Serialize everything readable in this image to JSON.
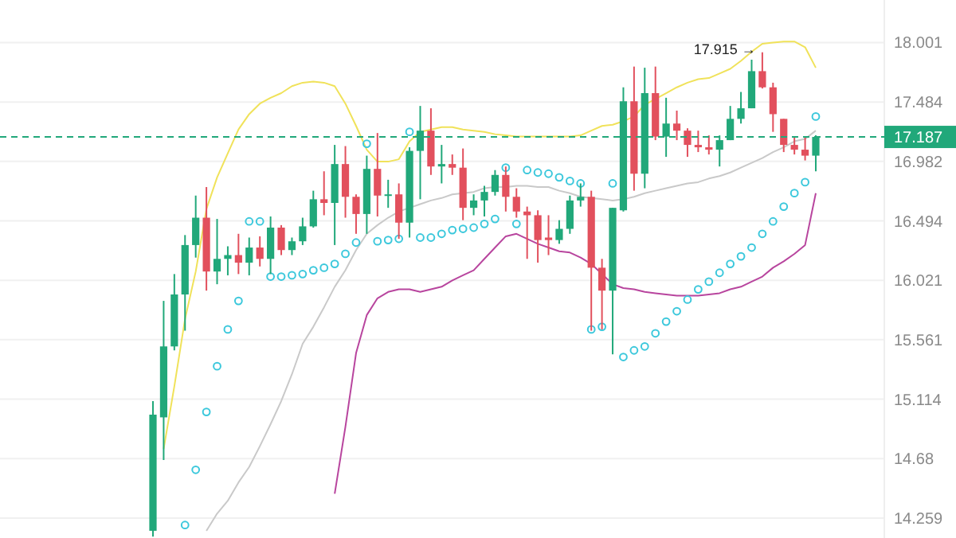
{
  "chart_data": {
    "type": "candlestick",
    "log": true,
    "grid": "y",
    "tick_labels": "y",
    "categories": [
      null,
      null,
      null,
      null,
      null,
      null,
      null,
      null,
      null,
      null,
      null,
      null,
      null,
      null,
      null,
      null,
      null,
      null,
      null,
      null,
      null,
      null,
      null,
      null,
      null,
      null,
      null,
      null,
      null,
      null,
      null,
      null,
      null,
      null,
      null,
      null,
      null,
      null,
      null,
      null,
      null,
      null,
      null,
      null,
      null,
      null,
      null,
      null,
      null,
      null,
      null,
      null,
      null,
      null,
      null,
      null,
      null,
      null,
      null,
      null,
      null,
      null,
      null
    ],
    "ylim": [
      14.12,
      18.38
    ],
    "yticks": [
      14.259,
      14.68,
      15.114,
      15.561,
      16.021,
      16.494,
      16.982,
      17.484,
      18.001
    ],
    "ohlc": [
      [
        14.17,
        15.1,
        14.13,
        15.0
      ],
      [
        14.98,
        15.86,
        14.67,
        15.51
      ],
      [
        15.51,
        16.07,
        15.48,
        15.91
      ],
      [
        15.91,
        16.38,
        15.63,
        16.3
      ],
      [
        16.3,
        16.7,
        16.2,
        16.52
      ],
      [
        16.52,
        16.77,
        15.94,
        16.09
      ],
      [
        16.09,
        16.51,
        15.99,
        16.19
      ],
      [
        16.19,
        16.29,
        16.06,
        16.22
      ],
      [
        16.22,
        16.39,
        16.07,
        16.16
      ],
      [
        16.16,
        16.36,
        16.06,
        16.28
      ],
      [
        16.28,
        16.37,
        16.13,
        16.19
      ],
      [
        16.19,
        16.53,
        16.07,
        16.44
      ],
      [
        16.44,
        16.46,
        16.22,
        16.26
      ],
      [
        16.26,
        16.36,
        16.22,
        16.33
      ],
      [
        16.33,
        16.52,
        16.3,
        16.45
      ],
      [
        16.45,
        16.74,
        16.44,
        16.67
      ],
      [
        16.67,
        16.9,
        16.54,
        16.64
      ],
      [
        16.64,
        17.12,
        16.3,
        16.96
      ],
      [
        16.96,
        17.11,
        16.52,
        16.69
      ],
      [
        16.69,
        16.71,
        16.39,
        16.55
      ],
      [
        16.55,
        17.03,
        16.39,
        16.92
      ],
      [
        16.92,
        17.22,
        16.53,
        16.7
      ],
      [
        16.7,
        16.83,
        16.6,
        16.71
      ],
      [
        16.71,
        16.8,
        16.35,
        16.48
      ],
      [
        16.48,
        17.1,
        16.36,
        17.07
      ],
      [
        17.07,
        17.45,
        16.67,
        17.24
      ],
      [
        17.24,
        17.43,
        16.87,
        16.94
      ],
      [
        16.94,
        17.12,
        16.8,
        16.96
      ],
      [
        16.96,
        17.04,
        16.87,
        16.93
      ],
      [
        16.93,
        17.09,
        16.5,
        16.6
      ],
      [
        16.6,
        16.71,
        16.54,
        16.66
      ],
      [
        16.66,
        16.78,
        16.53,
        16.73
      ],
      [
        16.73,
        16.91,
        16.7,
        16.87
      ],
      [
        16.87,
        16.94,
        16.57,
        16.69
      ],
      [
        16.69,
        16.76,
        16.52,
        16.57
      ],
      [
        16.57,
        16.61,
        16.19,
        16.54
      ],
      [
        16.54,
        16.58,
        16.16,
        16.34
      ],
      [
        16.36,
        16.54,
        16.22,
        16.34
      ],
      [
        16.34,
        16.5,
        16.31,
        16.43
      ],
      [
        16.43,
        16.7,
        16.39,
        16.66
      ],
      [
        16.66,
        16.8,
        16.61,
        16.69
      ],
      [
        16.69,
        16.74,
        15.63,
        16.12
      ],
      [
        16.12,
        16.19,
        15.64,
        15.94
      ],
      [
        15.94,
        16.6,
        15.45,
        16.6
      ],
      [
        16.58,
        17.61,
        16.57,
        17.49
      ],
      [
        17.49,
        17.79,
        16.74,
        16.88
      ],
      [
        16.88,
        17.78,
        16.76,
        17.56
      ],
      [
        17.56,
        17.79,
        17.16,
        17.19
      ],
      [
        17.19,
        17.52,
        17.02,
        17.3
      ],
      [
        17.3,
        17.41,
        17.16,
        17.24
      ],
      [
        17.24,
        17.26,
        17.02,
        17.12
      ],
      [
        17.12,
        17.24,
        17.06,
        17.1
      ],
      [
        17.1,
        17.2,
        17.04,
        17.08
      ],
      [
        17.08,
        17.2,
        16.94,
        17.16
      ],
      [
        17.16,
        17.45,
        17.16,
        17.34
      ],
      [
        17.34,
        17.57,
        17.3,
        17.43
      ],
      [
        17.43,
        17.85,
        17.43,
        17.75
      ],
      [
        17.75,
        17.915,
        17.6,
        17.61
      ],
      [
        17.61,
        17.65,
        17.23,
        17.38
      ],
      [
        17.34,
        17.34,
        17.06,
        17.12
      ],
      [
        17.12,
        17.19,
        17.04,
        17.08
      ],
      [
        17.08,
        17.19,
        16.99,
        17.03
      ],
      [
        17.03,
        17.2,
        16.9,
        17.187
      ]
    ],
    "colors": [
      "#21a87a",
      "#21a87a",
      "#21a87a",
      "#21a87a",
      "#21a87a",
      "#e2505d",
      "#21a87a",
      "#21a87a",
      "#e2505d",
      "#21a87a",
      "#e2505d",
      "#21a87a",
      "#e2505d",
      "#21a87a",
      "#21a87a",
      "#21a87a",
      "#e2505d",
      "#21a87a",
      "#e2505d",
      "#e2505d",
      "#21a87a",
      "#e2505d",
      "#21a87a",
      "#e2505d",
      "#21a87a",
      "#21a87a",
      "#e2505d",
      "#21a87a",
      "#e2505d",
      "#e2505d",
      "#21a87a",
      "#21a87a",
      "#21a87a",
      "#e2505d",
      "#e2505d",
      "#e2505d",
      "#e2505d",
      "#e2505d",
      "#21a87a",
      "#21a87a",
      "#21a87a",
      "#e2505d",
      "#e2505d",
      "#21a87a",
      "#21a87a",
      "#e2505d",
      "#21a87a",
      "#e2505d",
      "#21a87a",
      "#e2505d",
      "#e2505d",
      "#e2505d",
      "#e2505d",
      "#21a87a",
      "#21a87a",
      "#21a87a",
      "#21a87a",
      "#e2505d",
      "#e2505d",
      "#e2505d",
      "#e2505d",
      "#e2505d",
      "#21a87a"
    ],
    "series": [
      {
        "type": "line",
        "color": "#f0e25a",
        "values": [
          null,
          14.75,
          15.21,
          15.72,
          16.09,
          16.59,
          16.85,
          17.05,
          17.25,
          17.38,
          17.47,
          17.52,
          17.56,
          17.62,
          17.65,
          17.66,
          17.65,
          17.62,
          17.47,
          17.28,
          17.08,
          16.98,
          16.98,
          17.0,
          17.15,
          17.23,
          17.25,
          17.27,
          17.27,
          17.25,
          17.24,
          17.23,
          17.21,
          17.2,
          17.19,
          17.19,
          17.19,
          17.19,
          17.19,
          17.19,
          17.2,
          17.24,
          17.28,
          17.29,
          17.32,
          17.36,
          17.46,
          17.51,
          17.56,
          17.61,
          17.65,
          17.68,
          17.69,
          17.73,
          17.77,
          17.84,
          17.92,
          17.99,
          18.0,
          18.01,
          18.01,
          17.96,
          17.78
        ]
      },
      {
        "type": "line",
        "color": "#c9c9c9",
        "values": [
          null,
          null,
          null,
          null,
          null,
          14.17,
          14.29,
          14.38,
          14.51,
          14.62,
          14.77,
          14.93,
          15.1,
          15.3,
          15.53,
          15.66,
          15.81,
          15.97,
          16.1,
          16.26,
          16.39,
          16.46,
          16.52,
          16.57,
          16.6,
          16.63,
          16.66,
          16.68,
          16.71,
          16.72,
          16.73,
          16.76,
          16.77,
          16.77,
          16.78,
          16.78,
          16.77,
          16.77,
          16.74,
          16.72,
          16.69,
          16.68,
          16.67,
          16.66,
          16.67,
          16.69,
          16.72,
          16.74,
          16.76,
          16.78,
          16.8,
          16.81,
          16.84,
          16.86,
          16.89,
          16.93,
          16.97,
          17.01,
          17.06,
          17.1,
          17.15,
          17.17,
          17.24
        ]
      },
      {
        "type": "line",
        "color": "#b8459e",
        "values": [
          null,
          null,
          null,
          null,
          null,
          null,
          null,
          null,
          null,
          null,
          null,
          null,
          null,
          null,
          null,
          null,
          null,
          14.43,
          14.91,
          15.46,
          15.75,
          15.88,
          15.93,
          15.95,
          15.95,
          15.93,
          15.95,
          15.97,
          16.02,
          16.06,
          16.1,
          16.19,
          16.28,
          16.37,
          16.39,
          16.35,
          16.31,
          16.28,
          16.25,
          16.24,
          16.2,
          16.15,
          16.07,
          15.99,
          15.96,
          15.95,
          15.93,
          15.92,
          15.91,
          15.9,
          15.9,
          15.9,
          15.91,
          15.92,
          15.95,
          15.97,
          16.01,
          16.05,
          16.12,
          16.17,
          16.23,
          16.3,
          16.72
        ]
      },
      {
        "type": "scatter",
        "marker": "circle",
        "color": "#3cc8dc",
        "values": [
          null,
          null,
          null,
          14.21,
          14.6,
          15.02,
          15.36,
          15.64,
          15.86,
          16.49,
          16.49,
          16.05,
          16.05,
          16.06,
          16.07,
          16.1,
          16.12,
          16.15,
          16.23,
          16.32,
          17.13,
          16.33,
          16.34,
          16.35,
          17.23,
          16.36,
          16.36,
          16.39,
          16.42,
          16.43,
          16.44,
          16.47,
          16.51,
          16.93,
          16.47,
          16.91,
          16.89,
          16.88,
          16.85,
          16.82,
          16.8,
          15.64,
          15.66,
          16.8,
          15.43,
          15.48,
          15.51,
          15.61,
          15.7,
          15.78,
          15.87,
          15.95,
          16.01,
          16.08,
          16.15,
          16.21,
          16.28,
          16.39,
          16.49,
          16.61,
          16.72,
          16.81,
          17.36
        ]
      }
    ],
    "ref_lines": [
      {
        "axis": "y",
        "value": 17.187,
        "label": "17.187",
        "color": "#21a87a",
        "line_style": "dashed"
      }
    ],
    "annotations": [
      "17.915 →"
    ]
  }
}
